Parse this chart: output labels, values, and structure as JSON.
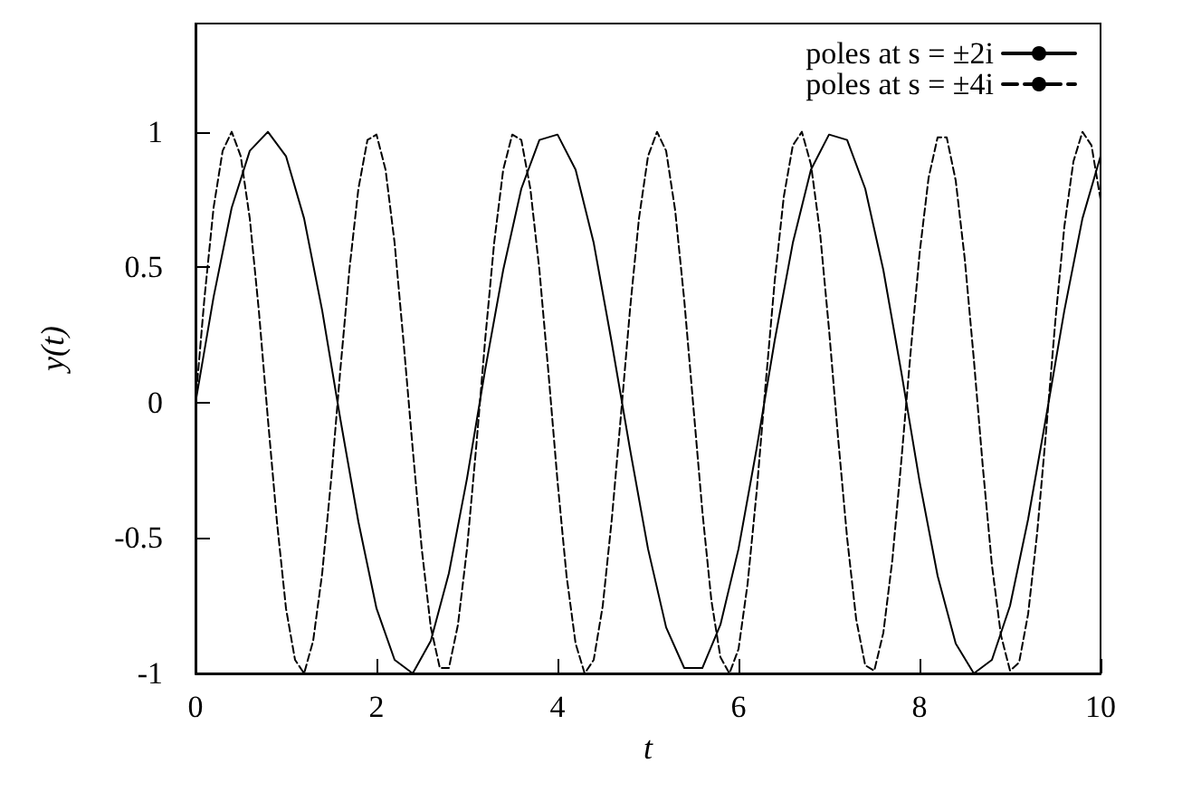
{
  "chart_data": {
    "type": "line",
    "xlabel": "t",
    "ylabel": "y(t)",
    "xlim": [
      0,
      10
    ],
    "ylim": [
      -1,
      1.4
    ],
    "xticks": [
      0,
      2,
      4,
      6,
      8,
      10
    ],
    "yticks": [
      -1,
      -0.5,
      0,
      0.5,
      1
    ],
    "grid": false,
    "legend": "top right",
    "marker": "none",
    "series": [
      {
        "name": "poles at s = ±2i",
        "color": "#000000",
        "line_style": "solid",
        "x": [
          0,
          0.2,
          0.4,
          0.6,
          0.8,
          1,
          1.2,
          1.4,
          1.6,
          1.8,
          2,
          2.2,
          2.4,
          2.6,
          2.8,
          3,
          3.2,
          3.4,
          3.6,
          3.8,
          4,
          4.2,
          4.4,
          4.6,
          4.8,
          5,
          5.2,
          5.4,
          5.6,
          5.8,
          6,
          6.2,
          6.4,
          6.6,
          6.8,
          7,
          7.2,
          7.4,
          7.6,
          7.8,
          8,
          8.2,
          8.4,
          8.6,
          8.8,
          9,
          9.2,
          9.4,
          9.6,
          9.8,
          10
        ],
        "values": [
          0,
          0.39,
          0.72,
          0.93,
          1,
          0.91,
          0.68,
          0.34,
          -0.06,
          -0.44,
          -0.76,
          -0.95,
          -1,
          -0.88,
          -0.63,
          -0.28,
          0.12,
          0.49,
          0.79,
          0.97,
          0.99,
          0.86,
          0.59,
          0.22,
          -0.17,
          -0.54,
          -0.83,
          -0.98,
          -0.98,
          -0.82,
          -0.54,
          -0.17,
          0.23,
          0.59,
          0.86,
          0.99,
          0.97,
          0.79,
          0.49,
          0.11,
          -0.29,
          -0.64,
          -0.89,
          -1,
          -0.95,
          -0.75,
          -0.43,
          -0.05,
          0.34,
          0.68,
          0.91
        ]
      },
      {
        "name": "poles at s = ±4i",
        "color": "#000000",
        "line_style": "dashed",
        "x": [
          0,
          0.1,
          0.2,
          0.3,
          0.4,
          0.5,
          0.6,
          0.7,
          0.8,
          0.9,
          1,
          1.1,
          1.2,
          1.3,
          1.4,
          1.5,
          1.6,
          1.7,
          1.8,
          1.9,
          2,
          2.1,
          2.2,
          2.3,
          2.4,
          2.5,
          2.6,
          2.7,
          2.8,
          2.9,
          3,
          3.1,
          3.2,
          3.3,
          3.4,
          3.5,
          3.6,
          3.7,
          3.8,
          3.9,
          4,
          4.1,
          4.2,
          4.3,
          4.4,
          4.5,
          4.6,
          4.7,
          4.8,
          4.9,
          5,
          5.1,
          5.2,
          5.3,
          5.4,
          5.5,
          5.6,
          5.7,
          5.8,
          5.9,
          6,
          6.1,
          6.2,
          6.3,
          6.4,
          6.5,
          6.6,
          6.7,
          6.8,
          6.9,
          7,
          7.1,
          7.2,
          7.3,
          7.4,
          7.5,
          7.6,
          7.7,
          7.8,
          7.9,
          8,
          8.1,
          8.2,
          8.3,
          8.4,
          8.5,
          8.6,
          8.7,
          8.8,
          8.9,
          9,
          9.1,
          9.2,
          9.3,
          9.4,
          9.5,
          9.6,
          9.7,
          9.8,
          9.9,
          10
        ],
        "values": [
          0,
          0.39,
          0.72,
          0.93,
          1,
          0.91,
          0.68,
          0.34,
          -0.06,
          -0.44,
          -0.76,
          -0.95,
          -1,
          -0.88,
          -0.63,
          -0.28,
          0.12,
          0.49,
          0.79,
          0.97,
          0.99,
          0.86,
          0.59,
          0.22,
          -0.17,
          -0.54,
          -0.83,
          -0.98,
          -0.98,
          -0.82,
          -0.54,
          -0.17,
          0.23,
          0.59,
          0.86,
          0.99,
          0.97,
          0.79,
          0.49,
          0.11,
          -0.29,
          -0.64,
          -0.89,
          -1,
          -0.95,
          -0.75,
          -0.43,
          -0.05,
          0.34,
          0.68,
          0.91,
          1,
          0.93,
          0.71,
          0.38,
          -0.01,
          -0.4,
          -0.73,
          -0.94,
          -1,
          -0.91,
          -0.67,
          -0.33,
          0.07,
          0.45,
          0.76,
          0.95,
          1,
          0.88,
          0.63,
          0.27,
          -0.13,
          -0.5,
          -0.8,
          -0.97,
          -0.99,
          -0.85,
          -0.58,
          -0.21,
          0.18,
          0.55,
          0.83,
          0.98,
          0.98,
          0.82,
          0.53,
          0.16,
          -0.24,
          -0.6,
          -0.86,
          -0.99,
          -0.96,
          -0.78,
          -0.48,
          -0.1,
          0.3,
          0.65,
          0.89,
          1,
          0.95,
          0.75
        ]
      }
    ]
  }
}
